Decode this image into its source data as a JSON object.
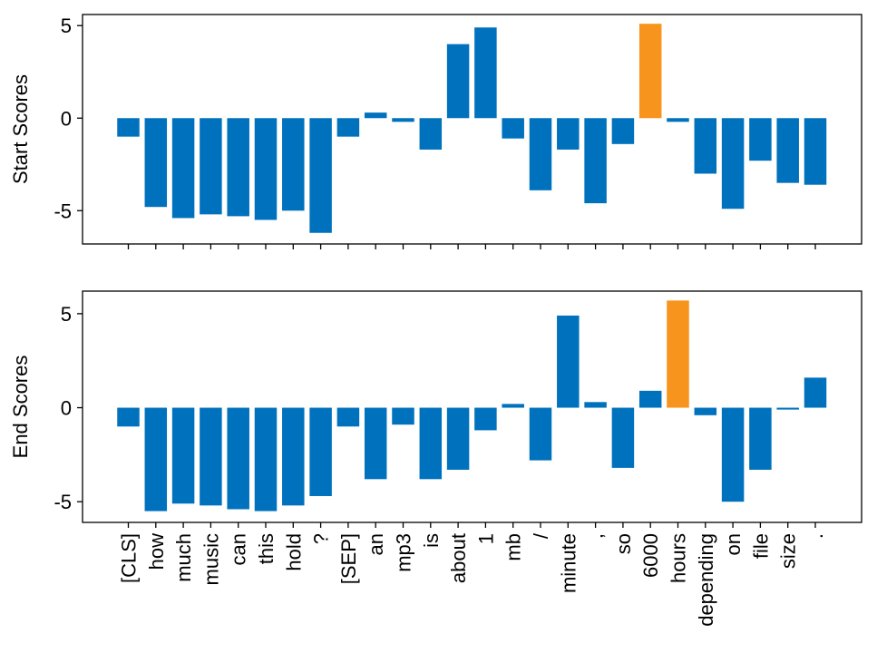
{
  "chart_data": [
    {
      "type": "bar",
      "ylabel": "Start Scores",
      "ylim": [
        -6.8,
        5.6
      ],
      "yticks": [
        5,
        0,
        -5
      ],
      "ytick_labels": [
        "5",
        "0",
        "-5"
      ],
      "categories": [
        "[CLS]",
        "how",
        "much",
        "music",
        "can",
        "this",
        "hold",
        "?",
        "[SEP]",
        "an",
        "mp3",
        "is",
        "about",
        "1",
        "mb",
        "/",
        "minute",
        ",",
        "so",
        "6000",
        "hours",
        "depending",
        "on",
        "file",
        "size",
        "."
      ],
      "values": [
        -1.0,
        -4.8,
        -5.4,
        -5.2,
        -5.3,
        -5.5,
        -5.0,
        -6.2,
        -1.0,
        0.3,
        -0.2,
        -1.7,
        4.0,
        4.9,
        -1.1,
        -3.9,
        -1.7,
        -4.6,
        -1.4,
        5.1,
        -0.2,
        -3.0,
        -4.9,
        -2.3,
        -3.5,
        -3.6
      ],
      "bar_color": "#0072BD",
      "highlight_color": "#F7941D",
      "highlight_index": 19,
      "show_xtick_labels": false
    },
    {
      "type": "bar",
      "ylabel": "End Scores",
      "ylim": [
        -6.1,
        6.2
      ],
      "yticks": [
        5,
        0,
        -5
      ],
      "ytick_labels": [
        "5",
        "0",
        "-5"
      ],
      "categories": [
        "[CLS]",
        "how",
        "much",
        "music",
        "can",
        "this",
        "hold",
        "?",
        "[SEP]",
        "an",
        "mp3",
        "is",
        "about",
        "1",
        "mb",
        "/",
        "minute",
        ",",
        "so",
        "6000",
        "hours",
        "depending",
        "on",
        "file",
        "size",
        "."
      ],
      "values": [
        -1.0,
        -5.5,
        -5.1,
        -5.2,
        -5.4,
        -5.5,
        -5.2,
        -4.7,
        -1.0,
        -3.8,
        -0.9,
        -3.8,
        -3.3,
        -1.2,
        0.2,
        -2.8,
        4.9,
        0.3,
        -3.2,
        0.9,
        5.7,
        -0.4,
        -5.0,
        -3.3,
        -0.1,
        1.6
      ],
      "bar_color": "#0072BD",
      "highlight_color": "#F7941D",
      "highlight_index": 20,
      "show_xtick_labels": true
    }
  ]
}
